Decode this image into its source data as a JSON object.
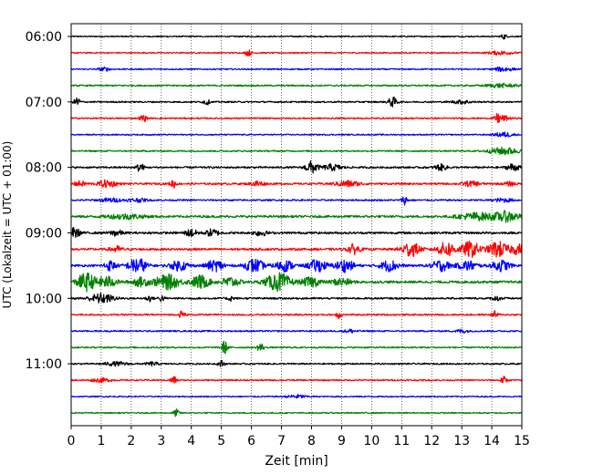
{
  "chart_data": {
    "type": "line",
    "title": "",
    "xlabel": "Zeit  [min]",
    "ylabel": "UTC (Lokalzeit = UTC + 01:00)",
    "xlim": [
      0,
      15
    ],
    "x_ticks": [
      0,
      1,
      2,
      3,
      4,
      5,
      6,
      7,
      8,
      9,
      10,
      11,
      12,
      13,
      14,
      15
    ],
    "y_tick_labels": [
      "06:00",
      "07:00",
      "08:00",
      "09:00",
      "10:00",
      "11:00"
    ],
    "y_tick_trace_index": [
      0,
      4,
      8,
      12,
      16,
      20
    ],
    "trace_minutes": 15,
    "trace_start_times": [
      "06:00",
      "06:15",
      "06:30",
      "06:45",
      "07:00",
      "07:15",
      "07:30",
      "07:45",
      "08:00",
      "08:15",
      "08:30",
      "08:45",
      "09:00",
      "09:15",
      "09:30",
      "09:45",
      "10:00",
      "10:15",
      "10:30",
      "10:45",
      "11:00",
      "11:15",
      "11:30",
      "11:45"
    ],
    "colors": [
      "#000000",
      "#ff0000",
      "#0000ff",
      "#008000"
    ],
    "grid": "vertical dotted at each minute",
    "traces": [
      {
        "noise": 0.1,
        "events": [
          [
            14.4,
            0.4,
            0.1
          ]
        ]
      },
      {
        "noise": 0.1,
        "events": [
          [
            5.9,
            0.5,
            0.1
          ],
          [
            14.3,
            0.3,
            0.4
          ]
        ]
      },
      {
        "noise": 0.1,
        "events": [
          [
            1.1,
            0.3,
            0.2
          ],
          [
            14.4,
            0.4,
            0.3
          ]
        ]
      },
      {
        "noise": 0.12,
        "events": [
          [
            14.3,
            0.3,
            0.5
          ]
        ]
      },
      {
        "noise": 0.12,
        "events": [
          [
            0.2,
            0.8,
            0.1
          ],
          [
            4.5,
            0.5,
            0.1
          ],
          [
            10.7,
            0.8,
            0.15
          ],
          [
            13.0,
            0.3,
            0.3
          ]
        ]
      },
      {
        "noise": 0.12,
        "events": [
          [
            2.4,
            0.6,
            0.1
          ],
          [
            14.2,
            0.7,
            0.1
          ],
          [
            14.4,
            0.4,
            0.2
          ]
        ]
      },
      {
        "noise": 0.1,
        "events": [
          [
            14.4,
            0.4,
            0.3
          ]
        ]
      },
      {
        "noise": 0.12,
        "events": [
          [
            14.4,
            0.6,
            0.5
          ]
        ]
      },
      {
        "noise": 0.15,
        "events": [
          [
            2.3,
            0.9,
            0.1
          ],
          [
            8.0,
            1.0,
            0.2
          ],
          [
            8.7,
            0.5,
            0.3
          ],
          [
            12.3,
            0.5,
            0.2
          ],
          [
            14.7,
            0.6,
            0.2
          ]
        ]
      },
      {
        "noise": 0.15,
        "events": [
          [
            0.3,
            0.4,
            0.2
          ],
          [
            1.2,
            0.6,
            0.3
          ],
          [
            3.4,
            0.7,
            0.1
          ],
          [
            6.2,
            0.5,
            0.2
          ],
          [
            9.2,
            0.5,
            0.4
          ],
          [
            13.3,
            0.4,
            0.3
          ],
          [
            14.6,
            0.3,
            0.2
          ]
        ]
      },
      {
        "noise": 0.13,
        "events": [
          [
            1.3,
            0.3,
            0.4
          ],
          [
            2.2,
            0.3,
            0.3
          ],
          [
            11.1,
            0.7,
            0.1
          ],
          [
            14.4,
            0.3,
            0.3
          ]
        ]
      },
      {
        "noise": 0.18,
        "events": [
          [
            1.8,
            0.4,
            0.6
          ],
          [
            13.5,
            0.6,
            0.6
          ],
          [
            14.5,
            0.8,
            0.4
          ]
        ]
      },
      {
        "noise": 0.18,
        "events": [
          [
            0.1,
            0.8,
            0.2
          ],
          [
            1.5,
            0.5,
            0.2
          ],
          [
            4.0,
            0.6,
            0.2
          ],
          [
            4.7,
            0.6,
            0.2
          ],
          [
            6.3,
            0.5,
            0.2
          ]
        ]
      },
      {
        "noise": 0.18,
        "events": [
          [
            1.5,
            0.5,
            0.2
          ],
          [
            9.4,
            0.8,
            0.2
          ],
          [
            11.3,
            1.2,
            0.3
          ],
          [
            12.5,
            1.2,
            0.3
          ],
          [
            13.3,
            1.3,
            0.3
          ],
          [
            14.2,
            1.3,
            0.3
          ],
          [
            14.9,
            0.8,
            0.3
          ]
        ]
      },
      {
        "noise": 0.18,
        "events": [
          [
            1.3,
            0.8,
            0.2
          ],
          [
            2.2,
            1.3,
            0.3
          ],
          [
            3.6,
            0.8,
            0.3
          ],
          [
            4.8,
            0.9,
            0.3
          ],
          [
            6.1,
            1.1,
            0.3
          ],
          [
            7.1,
            0.9,
            0.3
          ],
          [
            8.2,
            1.0,
            0.3
          ],
          [
            9.1,
            1.0,
            0.3
          ],
          [
            10.6,
            0.9,
            0.3
          ],
          [
            12.3,
            0.9,
            0.3
          ],
          [
            13.2,
            0.8,
            0.3
          ],
          [
            14.3,
            0.9,
            0.3
          ]
        ]
      },
      {
        "noise": 0.2,
        "events": [
          [
            0.5,
            1.5,
            0.3
          ],
          [
            1.2,
            0.9,
            0.3
          ],
          [
            2.3,
            0.7,
            0.3
          ],
          [
            3.2,
            1.2,
            0.4
          ],
          [
            4.3,
            1.1,
            0.3
          ],
          [
            5.3,
            0.8,
            0.3
          ],
          [
            6.9,
            1.5,
            0.4
          ],
          [
            8.0,
            0.8,
            0.3
          ],
          [
            9.0,
            0.6,
            0.3
          ]
        ]
      },
      {
        "noise": 0.15,
        "events": [
          [
            1.0,
            0.8,
            0.4
          ],
          [
            2.6,
            0.5,
            0.1
          ],
          [
            3.0,
            0.5,
            0.1
          ],
          [
            5.3,
            0.4,
            0.1
          ],
          [
            14.2,
            0.3,
            0.2
          ]
        ]
      },
      {
        "noise": 0.13,
        "events": [
          [
            3.7,
            0.7,
            0.1
          ],
          [
            8.9,
            0.6,
            0.1
          ],
          [
            14.1,
            0.6,
            0.1
          ]
        ]
      },
      {
        "noise": 0.12,
        "events": [
          [
            9.3,
            0.3,
            0.2
          ],
          [
            13.0,
            0.3,
            0.2
          ]
        ]
      },
      {
        "noise": 0.12,
        "events": [
          [
            5.1,
            1.1,
            0.1
          ],
          [
            6.3,
            0.8,
            0.1
          ]
        ]
      },
      {
        "noise": 0.12,
        "events": [
          [
            1.5,
            0.3,
            0.4
          ],
          [
            2.7,
            0.3,
            0.2
          ],
          [
            5.0,
            0.5,
            0.1
          ]
        ]
      },
      {
        "noise": 0.12,
        "events": [
          [
            1.0,
            0.3,
            0.3
          ],
          [
            3.4,
            0.7,
            0.1
          ],
          [
            14.4,
            0.6,
            0.1
          ]
        ]
      },
      {
        "noise": 0.1,
        "events": [
          [
            7.5,
            0.3,
            0.3
          ]
        ]
      },
      {
        "noise": 0.1,
        "events": [
          [
            3.5,
            0.6,
            0.1
          ]
        ]
      }
    ]
  }
}
